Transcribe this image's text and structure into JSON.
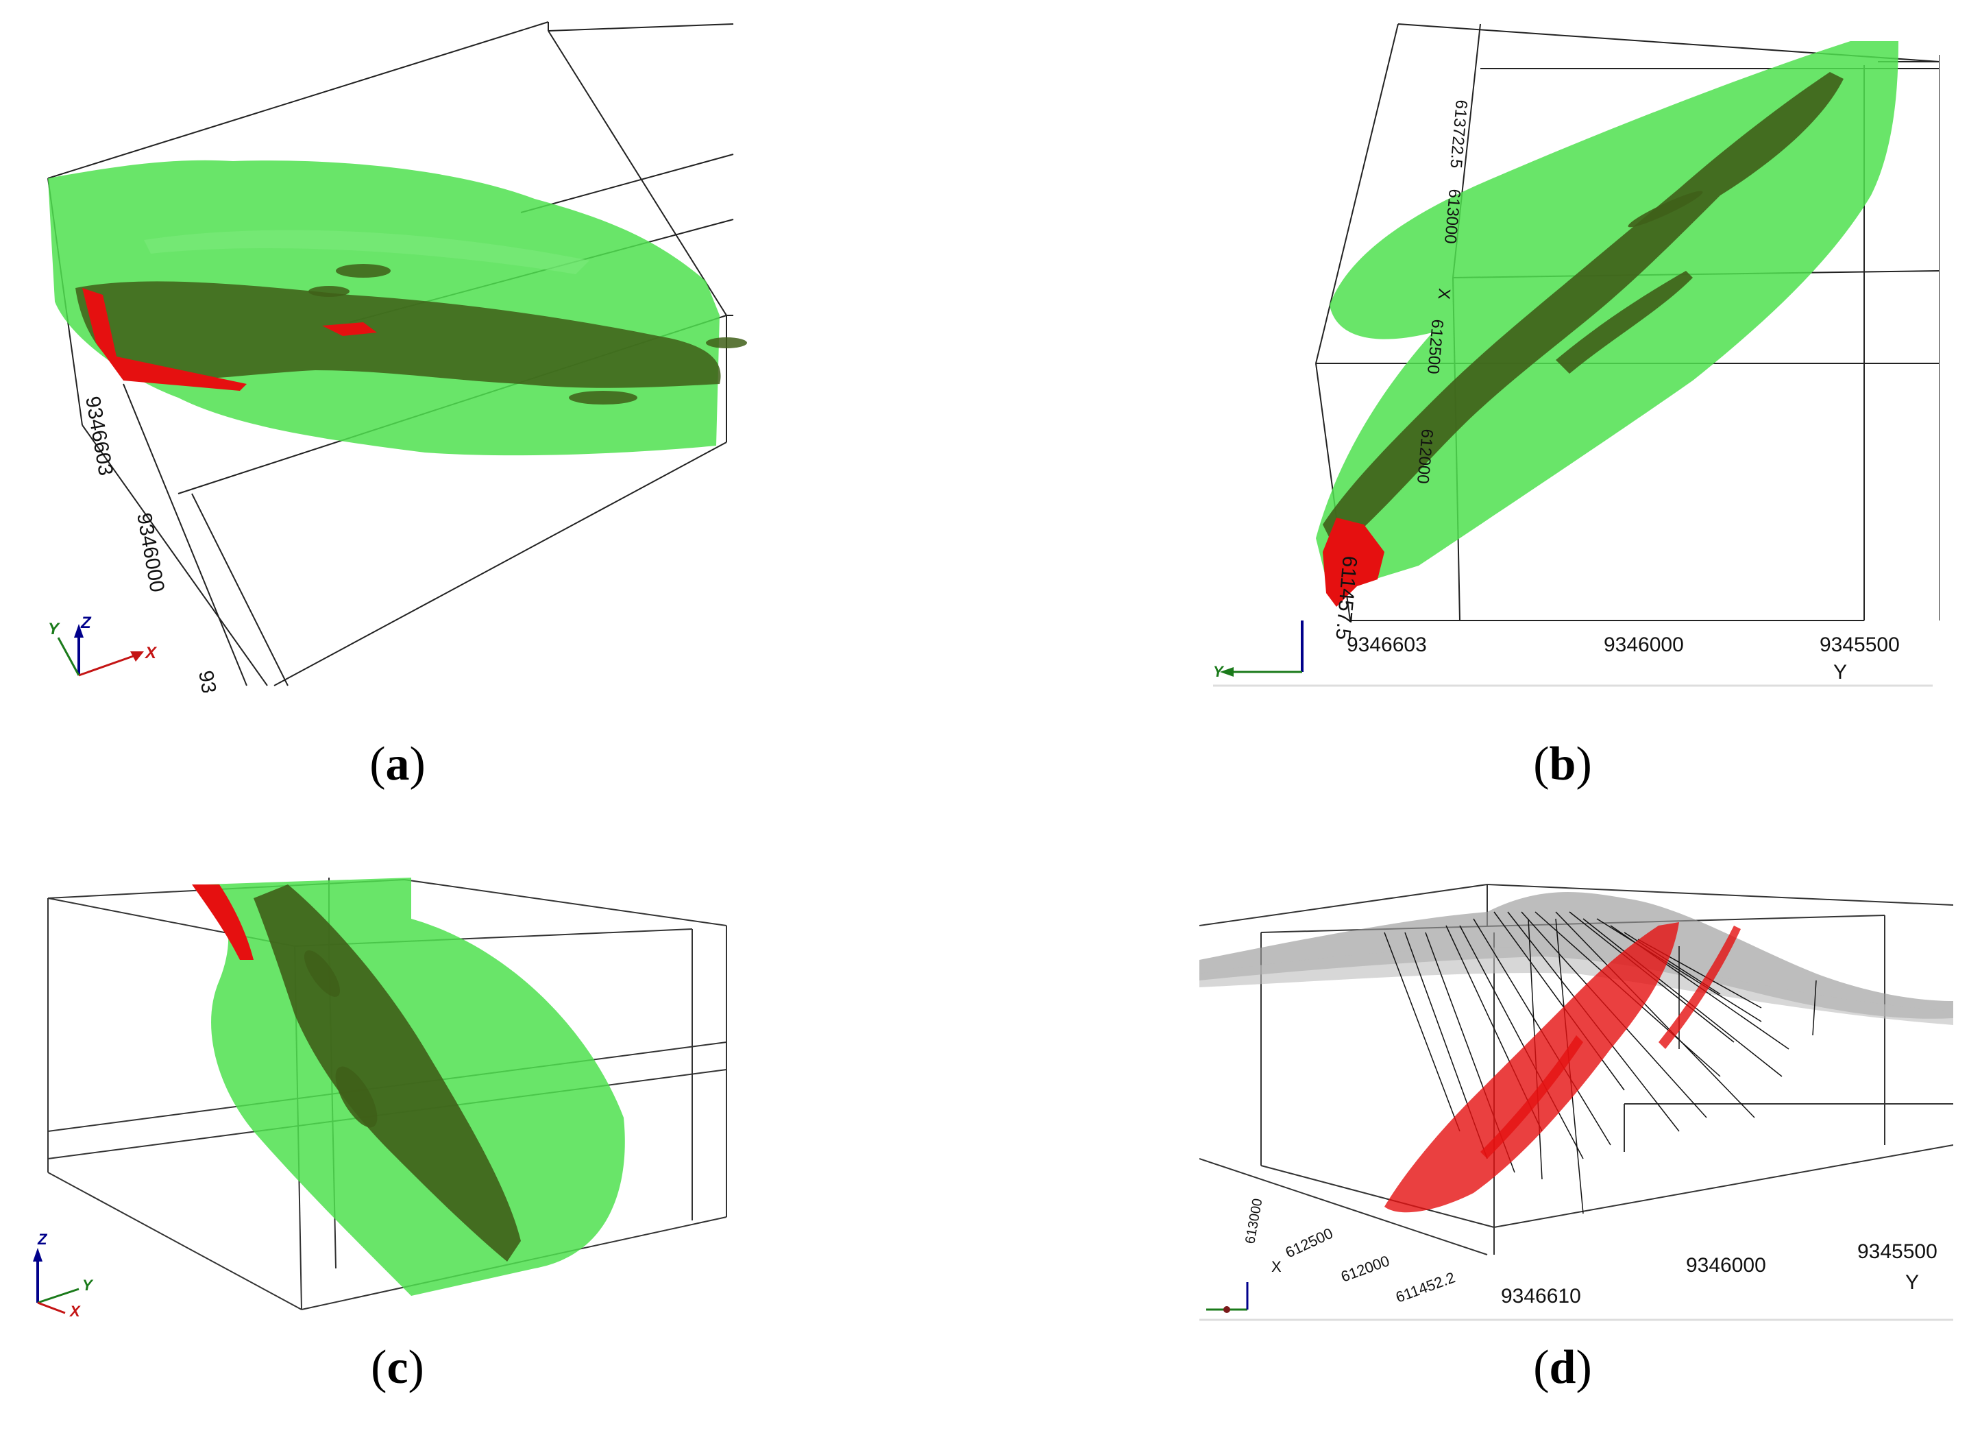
{
  "figure": {
    "panels": [
      {
        "caption_letter": "a",
        "axis_labels": [
          "9346603",
          "9346000",
          "93"
        ],
        "triad": {
          "x": "X",
          "y": "Y",
          "z": "Z"
        }
      },
      {
        "caption_letter": "b",
        "axis_labels": [
          "613722.5",
          "613000",
          "X",
          "612500",
          "612000",
          "611457.5",
          "9346603",
          "9346000",
          "9345500",
          "Y"
        ],
        "triad": {
          "x": "",
          "y": "Y",
          "z": ""
        }
      },
      {
        "caption_letter": "c",
        "axis_labels": [],
        "triad": {
          "x": "X",
          "y": "Y",
          "z": "Z"
        }
      },
      {
        "caption_letter": "d",
        "axis_labels": [
          "613000",
          "612500",
          "X",
          "612000",
          "611452.2",
          "9346610",
          "9346000",
          "9345500",
          "Y"
        ],
        "triad": {
          "x": "",
          "y": "",
          "z": ""
        }
      }
    ]
  },
  "colors": {
    "green_body": "#4fe04f",
    "dark_green_body": "#3f5f18",
    "red_body": "#e51010",
    "grey_surface": "#9a9a9a",
    "frame_line": "#222222"
  }
}
